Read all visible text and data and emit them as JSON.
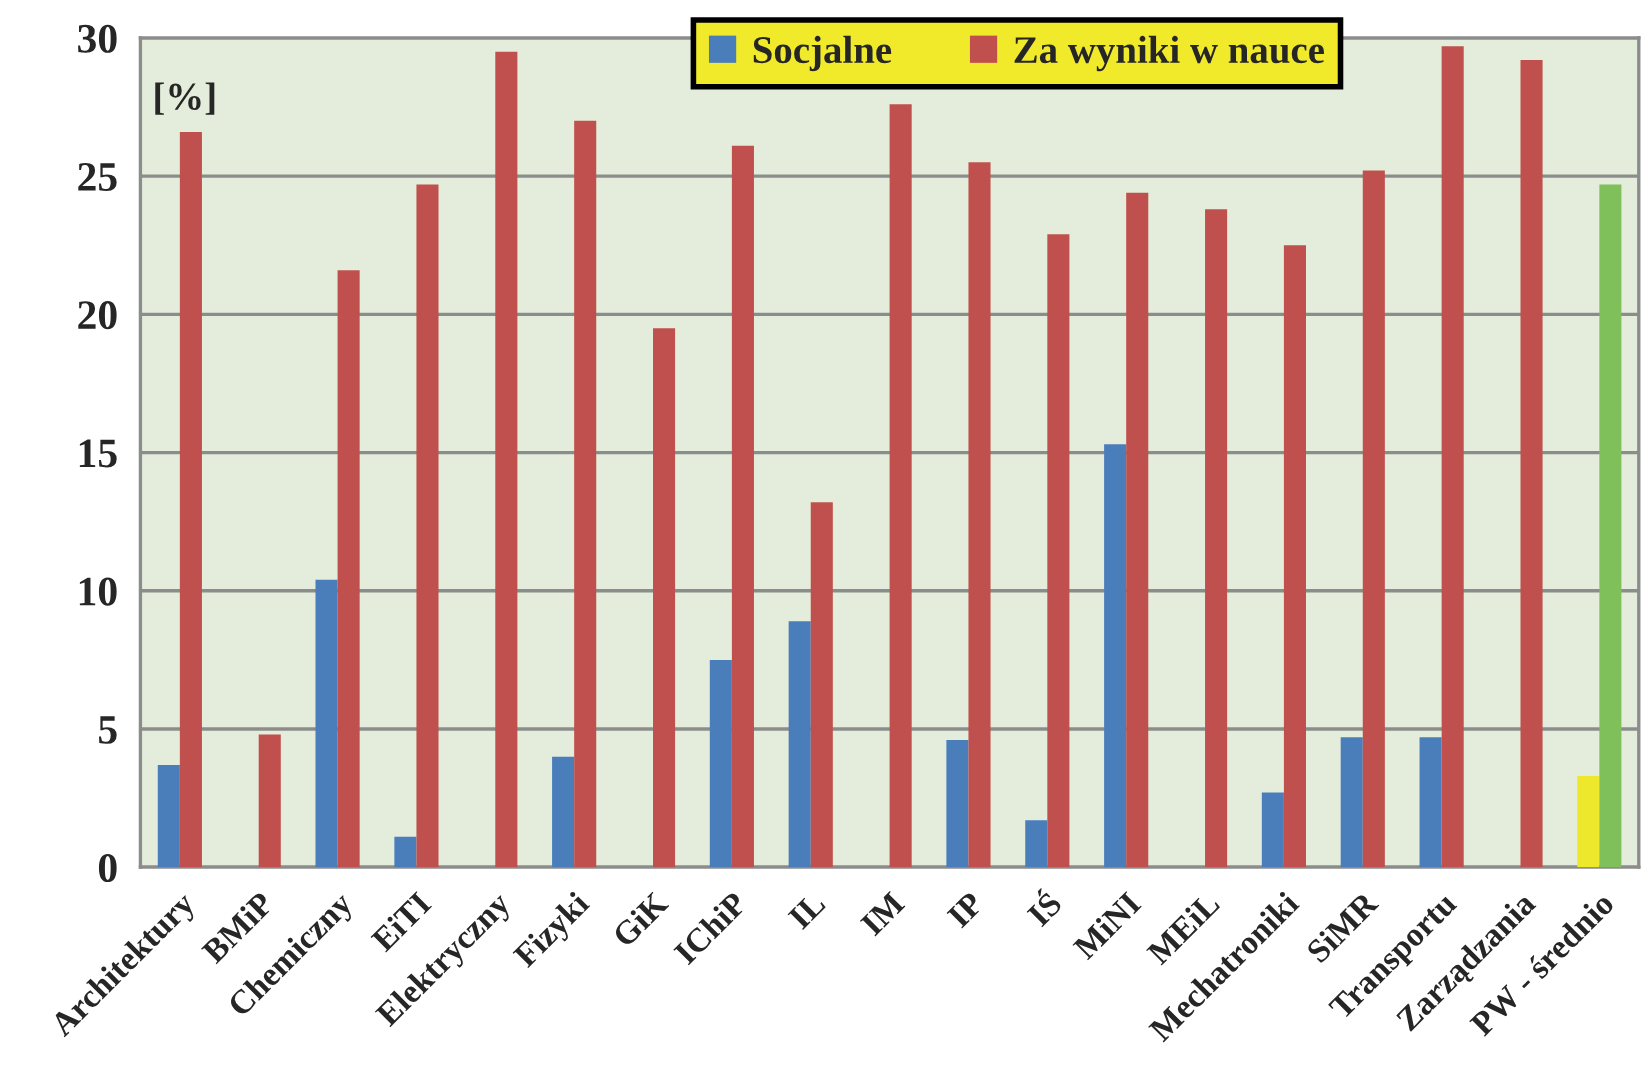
{
  "chart_data": {
    "type": "bar",
    "ylabel": "[%]",
    "categories": [
      "Architektury",
      "BMiP",
      "Chemiczny",
      "EiTI",
      "Elektryczny",
      "Fizyki",
      "GiK",
      "IChiP",
      "IL",
      "IM",
      "IP",
      "IŚ",
      "MiNI",
      "MEiL",
      "Mechatroniki",
      "SiMR",
      "Transportu",
      "Zarządzania",
      "PW - średnio"
    ],
    "series": [
      {
        "name": "Socjalne",
        "color": "#4a7ebb",
        "colors": [
          "#4a7ebb",
          "#4a7ebb",
          "#4a7ebb",
          "#4a7ebb",
          "#4a7ebb",
          "#4a7ebb",
          "#4a7ebb",
          "#4a7ebb",
          "#4a7ebb",
          "#4a7ebb",
          "#4a7ebb",
          "#4a7ebb",
          "#4a7ebb",
          "#4a7ebb",
          "#4a7ebb",
          "#4a7ebb",
          "#4a7ebb",
          "#4a7ebb",
          "#eee82c"
        ],
        "values": [
          3.7,
          0,
          10.4,
          1.1,
          0,
          4.0,
          0,
          7.5,
          8.9,
          0,
          4.6,
          1.7,
          15.3,
          0,
          2.7,
          4.7,
          4.7,
          0,
          3.3
        ]
      },
      {
        "name": "Za wyniki w nauce",
        "color": "#c0504d",
        "colors": [
          "#c0504d",
          "#c0504d",
          "#c0504d",
          "#c0504d",
          "#c0504d",
          "#c0504d",
          "#c0504d",
          "#c0504d",
          "#c0504d",
          "#c0504d",
          "#c0504d",
          "#c0504d",
          "#c0504d",
          "#c0504d",
          "#c0504d",
          "#c0504d",
          "#c0504d",
          "#c0504d",
          "#80c05a"
        ],
        "values": [
          26.6,
          4.8,
          21.6,
          24.7,
          29.5,
          27.0,
          19.5,
          26.1,
          13.2,
          27.6,
          25.5,
          22.9,
          24.4,
          23.8,
          22.5,
          25.2,
          29.7,
          29.2,
          24.7
        ]
      }
    ],
    "ylim": [
      0,
      30
    ],
    "yticks": [
      0,
      5,
      10,
      15,
      20,
      25,
      30
    ],
    "grid": "y",
    "legend": "top"
  }
}
